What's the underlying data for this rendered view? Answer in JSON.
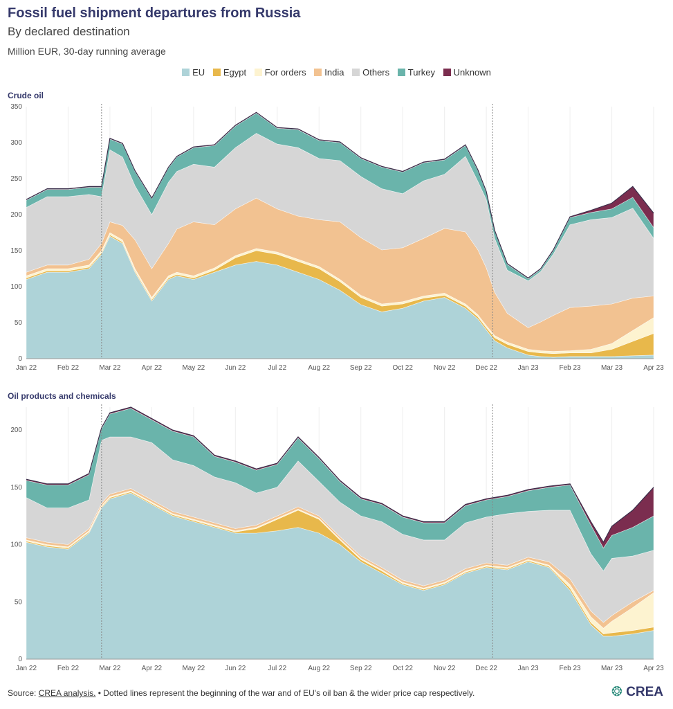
{
  "title": "Fossil fuel shipment departures from Russia",
  "subtitle": "By declared destination",
  "units": "Million EUR, 30-day running average",
  "legend": [
    {
      "label": "EU",
      "color": "#aed3d8"
    },
    {
      "label": "Egypt",
      "color": "#e8b84b"
    },
    {
      "label": "For orders",
      "color": "#fdf3d0"
    },
    {
      "label": "India",
      "color": "#f2c291"
    },
    {
      "label": "Others",
      "color": "#d6d6d6"
    },
    {
      "label": "Turkey",
      "color": "#6ab4ab"
    },
    {
      "label": "Unknown",
      "color": "#7b2d4f"
    }
  ],
  "footer": {
    "source_prefix": "Source: ",
    "source_link": "CREA analysis.",
    "note": " • Dotted lines represent the beginning of the war and of EU's oil ban & the wider price cap respectively."
  },
  "logo": {
    "mark": "❂",
    "text": "CREA"
  },
  "chart_data": [
    {
      "type": "area",
      "stacked": true,
      "title": "Crude oil",
      "ylim": [
        0,
        350
      ],
      "yticks": [
        0,
        50,
        100,
        150,
        200,
        250,
        300,
        350
      ],
      "xlim": [
        0,
        15
      ],
      "xticks": [
        "Jan 22",
        "Feb 22",
        "Mar 22",
        "Apr 22",
        "May 22",
        "Jun 22",
        "Jul 22",
        "Aug 22",
        "Sep 22",
        "Oct 22",
        "Nov 22",
        "Dec 22",
        "Jan 23",
        "Feb 23",
        "Mar 23",
        "Apr 23"
      ],
      "vlines": [
        1.8,
        11.15
      ],
      "x": [
        0,
        0.5,
        1,
        1.5,
        1.8,
        2,
        2.3,
        2.6,
        3,
        3.4,
        3.6,
        4,
        4.5,
        5,
        5.5,
        6,
        6.5,
        7,
        7.5,
        8,
        8.5,
        9,
        9.5,
        10,
        10.5,
        10.8,
        11,
        11.2,
        11.5,
        12,
        12.3,
        12.6,
        13,
        13.5,
        14,
        14.5,
        15
      ],
      "series": [
        {
          "name": "EU",
          "values": [
            110,
            120,
            120,
            125,
            145,
            170,
            160,
            120,
            80,
            110,
            115,
            110,
            120,
            130,
            135,
            130,
            120,
            110,
            95,
            75,
            65,
            70,
            80,
            85,
            70,
            55,
            40,
            25,
            15,
            5,
            3,
            2,
            3,
            3,
            3,
            4,
            5
          ]
        },
        {
          "name": "Egypt",
          "values": [
            2,
            2,
            2,
            2,
            2,
            2,
            2,
            2,
            2,
            2,
            2,
            2,
            3,
            10,
            15,
            15,
            15,
            15,
            12,
            10,
            8,
            6,
            4,
            3,
            3,
            3,
            3,
            4,
            5,
            5,
            5,
            5,
            5,
            5,
            10,
            20,
            30
          ]
        },
        {
          "name": "For orders",
          "values": [
            3,
            3,
            3,
            3,
            3,
            3,
            3,
            3,
            3,
            3,
            3,
            3,
            3,
            3,
            3,
            3,
            3,
            3,
            3,
            3,
            3,
            3,
            3,
            3,
            3,
            3,
            3,
            3,
            3,
            3,
            3,
            3,
            3,
            5,
            8,
            15,
            22
          ]
        },
        {
          "name": "India",
          "values": [
            5,
            5,
            5,
            8,
            10,
            15,
            20,
            40,
            40,
            45,
            60,
            75,
            60,
            65,
            70,
            60,
            60,
            65,
            80,
            80,
            75,
            75,
            80,
            90,
            100,
            90,
            80,
            60,
            40,
            30,
            40,
            50,
            60,
            60,
            55,
            45,
            30
          ]
        },
        {
          "name": "Others",
          "values": [
            90,
            95,
            95,
            90,
            65,
            100,
            95,
            75,
            75,
            85,
            80,
            80,
            80,
            85,
            90,
            90,
            95,
            85,
            85,
            85,
            85,
            75,
            80,
            75,
            105,
            95,
            95,
            75,
            60,
            65,
            70,
            85,
            115,
            120,
            120,
            125,
            80
          ]
        },
        {
          "name": "Turkey",
          "values": [
            10,
            10,
            10,
            10,
            13,
            15,
            18,
            20,
            22,
            20,
            20,
            23,
            30,
            30,
            28,
            22,
            25,
            25,
            25,
            25,
            30,
            30,
            25,
            20,
            15,
            15,
            10,
            10,
            8,
            3,
            3,
            5,
            10,
            10,
            12,
            15,
            15
          ]
        },
        {
          "name": "Unknown",
          "values": [
            1,
            1,
            1,
            1,
            1,
            1,
            1,
            1,
            1,
            1,
            1,
            1,
            1,
            1,
            1,
            1,
            1,
            1,
            1,
            1,
            1,
            1,
            1,
            1,
            1,
            1,
            1,
            1,
            1,
            1,
            1,
            1,
            1,
            3,
            8,
            15,
            20
          ]
        }
      ]
    },
    {
      "type": "area",
      "stacked": true,
      "title": "Oil products and chemicals",
      "ylim": [
        0,
        220
      ],
      "yticks": [
        0,
        50,
        100,
        150,
        200
      ],
      "xlim": [
        0,
        15
      ],
      "xticks": [
        "Jan 22",
        "Feb 22",
        "Mar 22",
        "Apr 22",
        "May 22",
        "Jun 22",
        "Jul 22",
        "Aug 22",
        "Sep 22",
        "Oct 22",
        "Nov 22",
        "Dec 22",
        "Jan 23",
        "Feb 23",
        "Mar 23",
        "Apr 23"
      ],
      "vlines": [
        1.8,
        11.15
      ],
      "x": [
        0,
        0.5,
        1,
        1.5,
        1.8,
        2,
        2.5,
        3,
        3.5,
        4,
        4.5,
        5,
        5.5,
        6,
        6.5,
        7,
        7.5,
        8,
        8.5,
        9,
        9.5,
        10,
        10.5,
        11,
        11.5,
        12,
        12.5,
        13,
        13.5,
        13.8,
        14,
        14.5,
        15
      ],
      "series": [
        {
          "name": "EU",
          "values": [
            102,
            98,
            96,
            110,
            132,
            140,
            145,
            135,
            125,
            120,
            115,
            110,
            110,
            112,
            115,
            110,
            100,
            85,
            75,
            65,
            60,
            65,
            75,
            80,
            78,
            85,
            80,
            60,
            30,
            20,
            20,
            22,
            25
          ]
        },
        {
          "name": "Egypt",
          "values": [
            1,
            1,
            1,
            1,
            1,
            1,
            1,
            1,
            1,
            1,
            1,
            1,
            4,
            10,
            15,
            12,
            4,
            2,
            2,
            1,
            1,
            1,
            1,
            1,
            1,
            1,
            1,
            2,
            2,
            2,
            3,
            3,
            3
          ]
        },
        {
          "name": "For orders",
          "values": [
            1,
            1,
            1,
            1,
            1,
            1,
            1,
            1,
            1,
            1,
            1,
            1,
            1,
            1,
            1,
            1,
            1,
            1,
            1,
            1,
            1,
            1,
            1,
            1,
            1,
            1,
            1,
            3,
            5,
            5,
            10,
            20,
            30
          ]
        },
        {
          "name": "India",
          "values": [
            2,
            2,
            2,
            2,
            2,
            2,
            2,
            2,
            2,
            2,
            2,
            2,
            2,
            2,
            2,
            2,
            2,
            2,
            2,
            2,
            2,
            2,
            2,
            2,
            2,
            2,
            3,
            5,
            5,
            5,
            5,
            5,
            2
          ]
        },
        {
          "name": "Others",
          "values": [
            35,
            30,
            32,
            25,
            55,
            50,
            45,
            50,
            45,
            45,
            40,
            40,
            28,
            25,
            40,
            30,
            30,
            35,
            40,
            40,
            40,
            35,
            40,
            40,
            45,
            40,
            45,
            60,
            50,
            45,
            50,
            40,
            35
          ]
        },
        {
          "name": "Turkey",
          "values": [
            15,
            20,
            20,
            22,
            10,
            20,
            25,
            20,
            25,
            25,
            18,
            18,
            20,
            20,
            20,
            20,
            18,
            15,
            15,
            15,
            15,
            15,
            15,
            15,
            15,
            18,
            20,
            22,
            25,
            20,
            20,
            25,
            30
          ]
        },
        {
          "name": "Unknown",
          "values": [
            1,
            1,
            1,
            1,
            1,
            1,
            1,
            1,
            1,
            1,
            1,
            1,
            1,
            1,
            1,
            1,
            1,
            1,
            1,
            1,
            1,
            1,
            1,
            1,
            1,
            1,
            1,
            1,
            3,
            5,
            8,
            15,
            25
          ]
        }
      ]
    }
  ]
}
